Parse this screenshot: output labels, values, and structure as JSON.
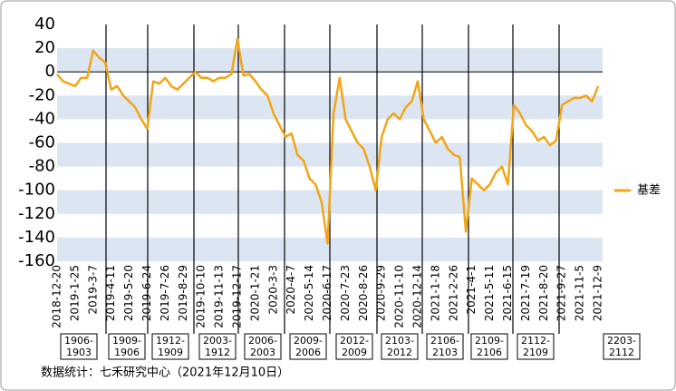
{
  "chart_data": {
    "type": "line",
    "categories": [
      "2018-12-20",
      null,
      null,
      "2019-1-25",
      null,
      null,
      "2019-3-7",
      null,
      null,
      "2019-4-11",
      null,
      null,
      "2019-5-20",
      null,
      null,
      "2019-6-24",
      null,
      null,
      "2019-7-26",
      null,
      null,
      "2019-8-29",
      null,
      null,
      "2019-10-10",
      null,
      null,
      "2019-11-13",
      null,
      null,
      "2019-12-17",
      null,
      null,
      "2020-1-21",
      null,
      null,
      "2020-3-3",
      null,
      null,
      "2020-4-7",
      null,
      null,
      "2020-5-14",
      null,
      null,
      "2020-6-17",
      null,
      null,
      "2020-7-23",
      null,
      null,
      "2020-8-26",
      null,
      null,
      "2020-9-29",
      null,
      null,
      "2020-11-10",
      null,
      null,
      "2020-12-14",
      null,
      null,
      "2021-1-18",
      null,
      null,
      "2021-2-26",
      null,
      null,
      "2021-4-1",
      null,
      null,
      "2021-5-11",
      null,
      null,
      "2021-6-15",
      null,
      null,
      "2021-7-19",
      null,
      null,
      "2021-8-20",
      null,
      null,
      "2021-9-27",
      null,
      null,
      "2021-11-5",
      null,
      null,
      "2021-12-9"
    ],
    "series": [
      {
        "name": "基差",
        "color": "#f2a516",
        "values": [
          -2,
          -8,
          -10,
          -12,
          -5,
          -5,
          18,
          12,
          8,
          -15,
          -12,
          -20,
          -25,
          -30,
          -40,
          -48,
          -8,
          -10,
          -5,
          -12,
          -15,
          -10,
          -5,
          0,
          -5,
          -5,
          -8,
          -5,
          -5,
          -2,
          28,
          -3,
          -2,
          -8,
          -15,
          -20,
          -35,
          -45,
          -55,
          -52,
          -70,
          -75,
          -90,
          -95,
          -110,
          -145,
          -35,
          -5,
          -40,
          -50,
          -60,
          -65,
          -80,
          -100,
          -55,
          -40,
          -35,
          -40,
          -30,
          -25,
          -8,
          -40,
          -50,
          -60,
          -55,
          -65,
          -70,
          -72,
          -135,
          -90,
          -95,
          -100,
          -95,
          -85,
          -80,
          -95,
          -28,
          -35,
          -45,
          -50,
          -58,
          -55,
          -62,
          -58,
          -28,
          -25,
          -22,
          -22,
          -20,
          -25,
          -12
        ]
      }
    ],
    "ylim": [
      -160,
      40
    ],
    "yticks": [
      -160,
      -140,
      -120,
      -100,
      -80,
      -60,
      -40,
      -20,
      0,
      20,
      40
    ],
    "bands": true,
    "band_color": "#dce6f2",
    "legend": "right",
    "contracts": [
      [
        "1906-",
        "1903"
      ],
      [
        "1909-",
        "1906"
      ],
      [
        "1912-",
        "1909"
      ],
      [
        "2003-",
        "1912"
      ],
      [
        "2006-",
        "2003"
      ],
      [
        "2009-",
        "2006"
      ],
      [
        "2012-",
        "2009"
      ],
      [
        "2103-",
        "2012"
      ],
      [
        "2106-",
        "2103"
      ],
      [
        "2109-",
        "2106"
      ],
      [
        "2112-",
        "2109"
      ],
      [
        "2203-",
        "2112"
      ]
    ],
    "source": "数据统计：七禾研究中心（2021年12月10日）"
  }
}
